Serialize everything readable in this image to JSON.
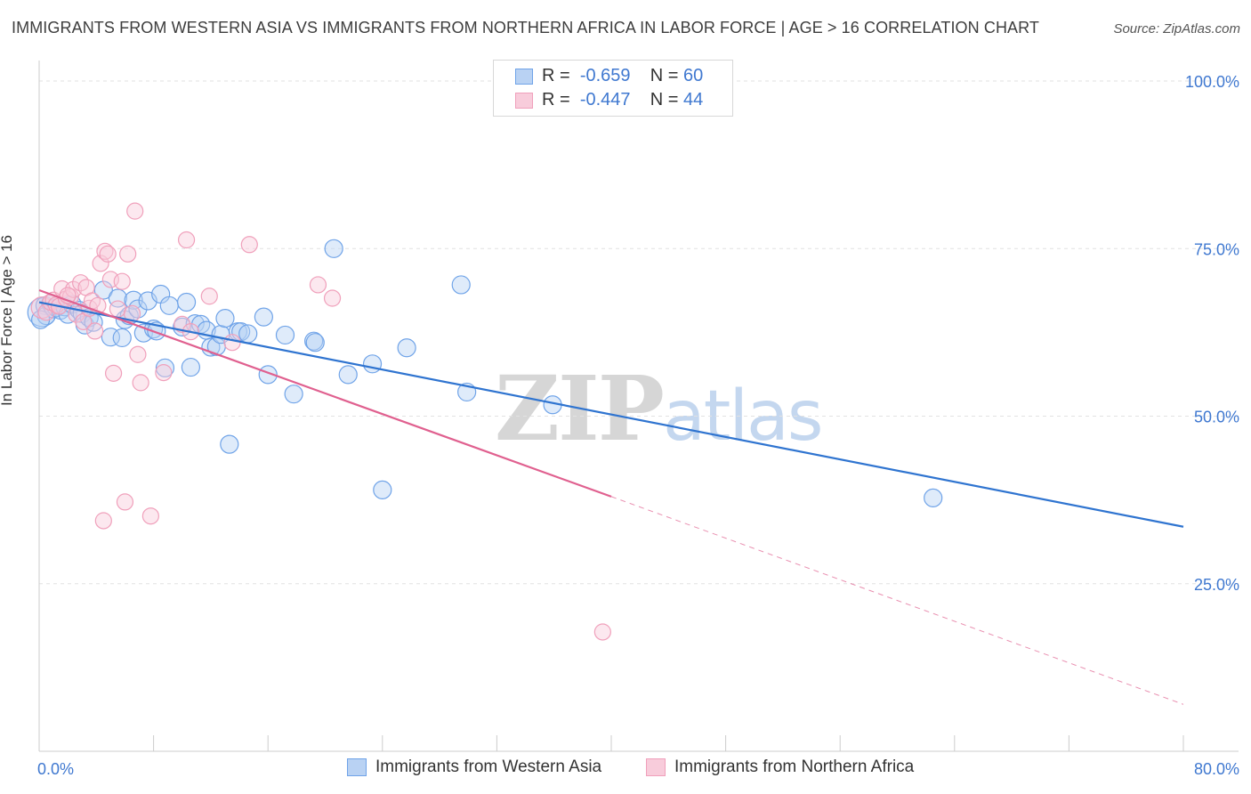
{
  "title": "IMMIGRANTS FROM WESTERN ASIA VS IMMIGRANTS FROM NORTHERN AFRICA IN LABOR FORCE | AGE > 16 CORRELATION CHART",
  "source": "Source: ZipAtlas.com",
  "watermark": {
    "zip": "ZIP",
    "atlas": "atlas"
  },
  "legend": {
    "western_asia": {
      "r_label": "R =",
      "r_value": "-0.659",
      "n_label": "N =",
      "n_value": "60"
    },
    "northern_africa": {
      "r_label": "R =",
      "r_value": "-0.447",
      "n_label": "N =",
      "n_value": "44"
    }
  },
  "chart_data": {
    "type": "scatter",
    "title": "IMMIGRANTS FROM WESTERN ASIA VS IMMIGRANTS FROM NORTHERN AFRICA IN LABOR FORCE | AGE > 16 CORRELATION CHART",
    "xlabel": "",
    "ylabel": "In Labor Force | Age > 16",
    "xlim": [
      0,
      80
    ],
    "ylim": [
      0,
      102
    ],
    "x_tick_labels": [
      "0.0%",
      "80.0%"
    ],
    "y_ticks": [
      25,
      50,
      75,
      100
    ],
    "y_tick_labels": [
      "25.0%",
      "50.0%",
      "75.0%",
      "100.0%"
    ],
    "grid": true,
    "legend_position": "top-center",
    "series": [
      {
        "name": "Immigrants from Western Asia",
        "color": "#6fa3e8",
        "fill": "#b9d2f3",
        "trend_color": "#2f74d0",
        "trend": {
          "x0": 0,
          "y0": 67.0,
          "x1": 80,
          "y1": 33.5
        },
        "points": [
          [
            0.2,
            65.5
          ],
          [
            0.4,
            66.5
          ],
          [
            0.5,
            65.0
          ],
          [
            0.8,
            66.8
          ],
          [
            1.0,
            66.0
          ],
          [
            1.2,
            66.2
          ],
          [
            1.5,
            65.8
          ],
          [
            1.8,
            66.3
          ],
          [
            2.0,
            65.2
          ],
          [
            2.3,
            66.7
          ],
          [
            2.8,
            65.8
          ],
          [
            3.0,
            65.3
          ],
          [
            3.2,
            63.6
          ],
          [
            3.5,
            64.7
          ],
          [
            3.8,
            64.0
          ],
          [
            4.5,
            68.8
          ],
          [
            5.0,
            61.8
          ],
          [
            5.5,
            67.6
          ],
          [
            5.8,
            61.7
          ],
          [
            6.0,
            64.4
          ],
          [
            6.3,
            65.0
          ],
          [
            6.6,
            67.3
          ],
          [
            6.9,
            66.0
          ],
          [
            7.3,
            62.4
          ],
          [
            7.6,
            67.2
          ],
          [
            8.0,
            63.0
          ],
          [
            8.2,
            62.7
          ],
          [
            8.5,
            68.2
          ],
          [
            8.8,
            57.2
          ],
          [
            9.1,
            66.5
          ],
          [
            10.0,
            63.3
          ],
          [
            10.3,
            67.0
          ],
          [
            10.6,
            57.3
          ],
          [
            10.9,
            63.8
          ],
          [
            11.3,
            63.7
          ],
          [
            11.7,
            62.8
          ],
          [
            12.0,
            60.3
          ],
          [
            12.4,
            60.4
          ],
          [
            12.7,
            62.2
          ],
          [
            13.0,
            64.6
          ],
          [
            13.3,
            45.8
          ],
          [
            13.9,
            62.6
          ],
          [
            14.1,
            62.6
          ],
          [
            14.6,
            62.3
          ],
          [
            15.7,
            64.8
          ],
          [
            16.0,
            56.2
          ],
          [
            17.2,
            62.1
          ],
          [
            17.8,
            53.3
          ],
          [
            19.2,
            61.2
          ],
          [
            19.3,
            61.0
          ],
          [
            20.6,
            75.0
          ],
          [
            21.6,
            56.2
          ],
          [
            23.3,
            57.8
          ],
          [
            24.0,
            39.0
          ],
          [
            25.7,
            60.2
          ],
          [
            29.5,
            69.6
          ],
          [
            29.9,
            53.6
          ],
          [
            35.9,
            51.7
          ],
          [
            62.5,
            37.8
          ],
          [
            0.1,
            64.4
          ]
        ],
        "radii": [
          16,
          10,
          10,
          10,
          10,
          10,
          10,
          10,
          10,
          10,
          10,
          10,
          10,
          10,
          10,
          10,
          10,
          10,
          10,
          10,
          10,
          10,
          10,
          10,
          10,
          10,
          10,
          10,
          10,
          10,
          10,
          10,
          10,
          10,
          10,
          10,
          10,
          10,
          10,
          10,
          10,
          10,
          10,
          10,
          10,
          10,
          10,
          10,
          10,
          10,
          10,
          10,
          10,
          10,
          10,
          10,
          10,
          10,
          10,
          10
        ]
      },
      {
        "name": "Immigrants from Northern Africa",
        "color": "#f0a0bb",
        "fill": "#f8ccdb",
        "trend_color": "#e0608f",
        "trend": {
          "x0": 0,
          "y0": 68.8,
          "x1": 40,
          "y1": 38.0
        },
        "trend_dashed": {
          "x0": 40,
          "y0": 38.0,
          "x1": 80,
          "y1": 7.0
        },
        "points": [
          [
            0.2,
            66.2
          ],
          [
            0.5,
            65.5
          ],
          [
            0.8,
            67.0
          ],
          [
            1.0,
            67.3
          ],
          [
            1.2,
            66.6
          ],
          [
            1.4,
            66.4
          ],
          [
            1.6,
            69.0
          ],
          [
            1.9,
            67.5
          ],
          [
            2.2,
            67.8
          ],
          [
            2.4,
            68.9
          ],
          [
            2.6,
            65.2
          ],
          [
            2.9,
            69.9
          ],
          [
            3.1,
            64.1
          ],
          [
            3.3,
            69.2
          ],
          [
            3.5,
            66.1
          ],
          [
            3.7,
            67.2
          ],
          [
            3.9,
            62.7
          ],
          [
            4.1,
            66.5
          ],
          [
            4.3,
            72.8
          ],
          [
            4.6,
            74.6
          ],
          [
            4.8,
            74.2
          ],
          [
            5.0,
            70.4
          ],
          [
            5.2,
            56.4
          ],
          [
            5.5,
            66.0
          ],
          [
            5.8,
            70.1
          ],
          [
            6.0,
            37.2
          ],
          [
            6.2,
            74.2
          ],
          [
            6.5,
            65.3
          ],
          [
            6.7,
            80.6
          ],
          [
            6.9,
            59.2
          ],
          [
            7.1,
            55.0
          ],
          [
            7.8,
            35.1
          ],
          [
            8.7,
            56.5
          ],
          [
            10.0,
            63.7
          ],
          [
            10.3,
            76.3
          ],
          [
            10.6,
            62.6
          ],
          [
            11.9,
            67.9
          ],
          [
            13.5,
            61.0
          ],
          [
            14.7,
            75.6
          ],
          [
            19.5,
            69.6
          ],
          [
            20.5,
            67.6
          ],
          [
            39.4,
            17.8
          ],
          [
            4.5,
            34.4
          ],
          [
            2.0,
            68.0
          ]
        ],
        "radii": [
          12,
          9,
          9,
          9,
          9,
          9,
          9,
          9,
          9,
          9,
          9,
          9,
          9,
          9,
          9,
          9,
          9,
          9,
          9,
          9,
          9,
          9,
          9,
          9,
          9,
          9,
          9,
          9,
          9,
          9,
          9,
          9,
          9,
          9,
          9,
          9,
          9,
          9,
          9,
          9,
          9,
          9,
          9,
          9
        ]
      }
    ]
  }
}
